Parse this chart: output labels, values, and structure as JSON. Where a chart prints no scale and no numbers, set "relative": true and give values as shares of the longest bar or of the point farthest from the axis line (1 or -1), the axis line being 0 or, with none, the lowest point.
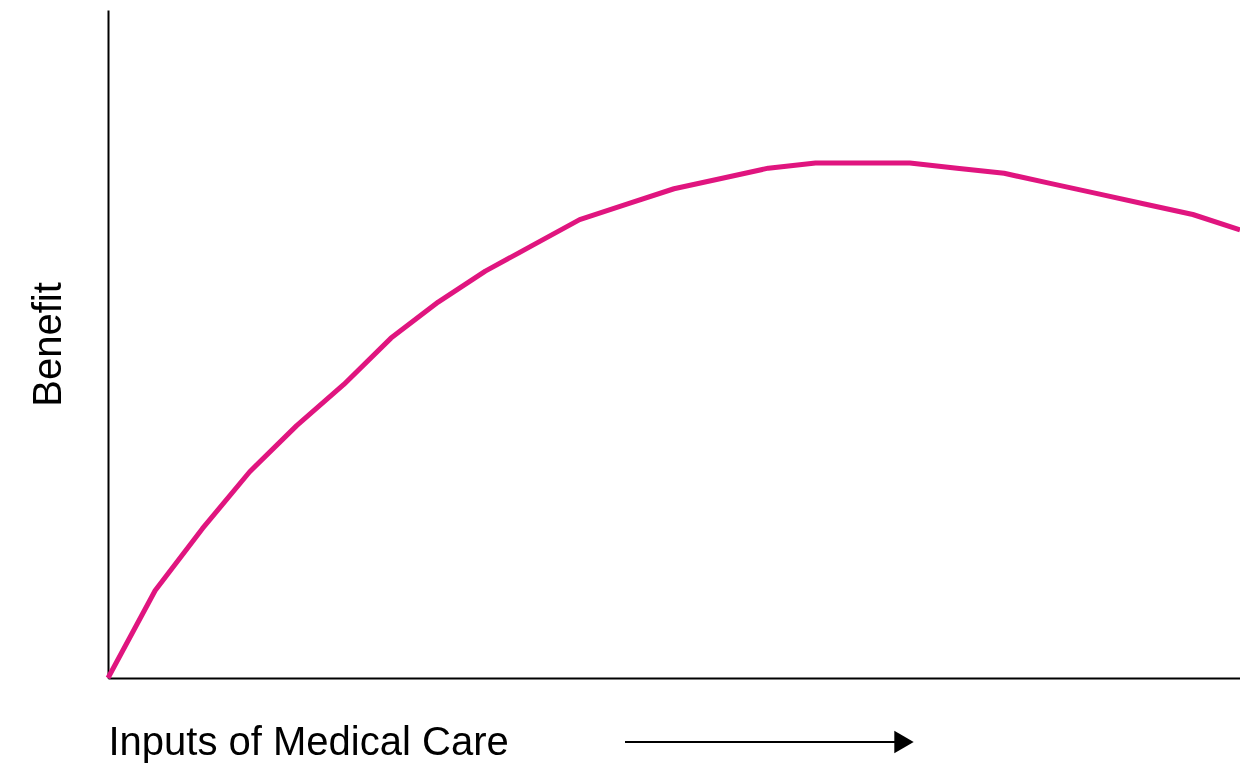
{
  "chart_data": {
    "type": "line",
    "relative": true,
    "xlabel": "Inputs of Medical Care",
    "ylabel": "Benefit",
    "categories": [
      null,
      null,
      null,
      null,
      null,
      null,
      null,
      null,
      null,
      null,
      null,
      null,
      null,
      null,
      null,
      null,
      null,
      null,
      null,
      null,
      null,
      null,
      null,
      null,
      null
    ],
    "series": [
      {
        "color": "#e0157f",
        "values": [
          0,
          0.17,
          0.29,
          0.4,
          0.49,
          0.57,
          0.66,
          0.73,
          0.79,
          0.84,
          0.89,
          0.92,
          0.95,
          0.97,
          0.99,
          1.0,
          1.0,
          1.0,
          0.99,
          0.98,
          0.96,
          0.94,
          0.92,
          0.9,
          0.87
        ]
      }
    ],
    "grid": false,
    "tick_labels": false,
    "marker": "none",
    "line_style": "solid"
  }
}
